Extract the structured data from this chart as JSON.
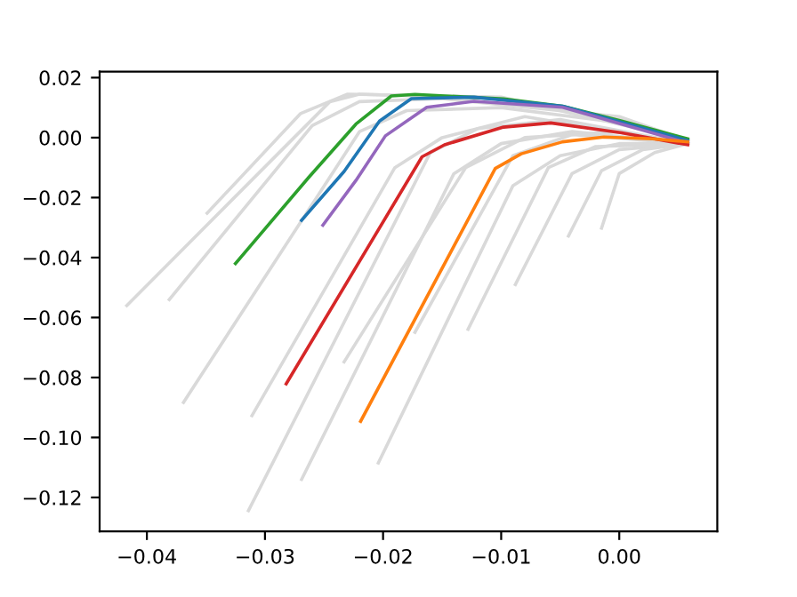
{
  "chart_data": {
    "type": "line",
    "xlim": [
      -0.044,
      0.0083
    ],
    "ylim": [
      -0.1313,
      0.022
    ],
    "xticks": [
      {
        "value": -0.04,
        "label": "−0.04"
      },
      {
        "value": -0.03,
        "label": "−0.03"
      },
      {
        "value": -0.02,
        "label": "−0.02"
      },
      {
        "value": -0.01,
        "label": "−0.01"
      },
      {
        "value": 0,
        "label": "0.00"
      }
    ],
    "yticks": [
      {
        "value": 0.02,
        "label": "0.02"
      },
      {
        "value": 0,
        "label": "0.00"
      },
      {
        "value": -0.02,
        "label": "−0.02"
      },
      {
        "value": -0.04,
        "label": "−0.04"
      },
      {
        "value": -0.06,
        "label": "−0.06"
      },
      {
        "value": -0.08,
        "label": "−0.08"
      },
      {
        "value": -0.1,
        "label": "−0.10"
      },
      {
        "value": -0.12,
        "label": "−0.12"
      }
    ],
    "grid": false,
    "marker": "none",
    "line_style": "solid",
    "series": [
      {
        "color": "#d9d9d9",
        "x": [
          -0.0417,
          -0.0245,
          -0.022,
          -0.01,
          0,
          0.0058
        ],
        "values": [
          -0.056,
          0.012,
          0.0145,
          0.013,
          0.006,
          -0.001
        ]
      },
      {
        "color": "#d9d9d9",
        "x": [
          -0.0369,
          -0.022,
          -0.018,
          -0.01,
          0,
          0.0058
        ],
        "values": [
          -0.0883,
          0.002,
          0.009,
          0.01,
          0.005,
          -0.0015
        ]
      },
      {
        "color": "#d9d9d9",
        "x": [
          -0.0314,
          -0.016,
          -0.012,
          -0.005,
          0.0058
        ],
        "values": [
          -0.1244,
          -0.005,
          0.003,
          0.006,
          -0.002
        ]
      },
      {
        "color": "#d9d9d9",
        "x": [
          -0.0269,
          -0.014,
          -0.01,
          -0.004,
          0.0058
        ],
        "values": [
          -0.114,
          -0.012,
          -0.002,
          0.002,
          -0.002
        ]
      },
      {
        "color": "#d9d9d9",
        "x": [
          -0.0204,
          -0.009,
          -0.005,
          0,
          0.0058
        ],
        "values": [
          -0.1085,
          -0.016,
          -0.006,
          -0.002,
          -0.002
        ]
      },
      {
        "color": "#d9d9d9",
        "x": [
          -0.0088,
          -0.004,
          0,
          0.0058
        ],
        "values": [
          -0.049,
          -0.012,
          -0.004,
          -0.002
        ]
      },
      {
        "color": "#d9d9d9",
        "x": [
          -0.0043,
          -0.0015,
          0.002,
          0.0058
        ],
        "values": [
          -0.0328,
          -0.011,
          -0.004,
          -0.002
        ]
      },
      {
        "color": "#d9d9d9",
        "x": [
          -0.0128,
          -0.006,
          -0.002,
          0.0058
        ],
        "values": [
          -0.0639,
          -0.01,
          -0.003,
          -0.002
        ]
      },
      {
        "color": "#d9d9d9",
        "x": [
          -0.0381,
          -0.026,
          -0.022,
          -0.015,
          0,
          0.0058
        ],
        "values": [
          -0.054,
          0.004,
          0.012,
          0.013,
          0.007,
          -0.001
        ]
      },
      {
        "color": "#d9d9d9",
        "x": [
          -0.0349,
          -0.027,
          -0.023,
          -0.01,
          0.0058
        ],
        "values": [
          -0.0252,
          0.008,
          0.0145,
          0.0135,
          -0.0008
        ]
      },
      {
        "color": "#d9d9d9",
        "x": [
          -0.0311,
          -0.019,
          -0.015,
          -0.008,
          0.0058
        ],
        "values": [
          -0.0927,
          -0.01,
          0.0,
          0.007,
          -0.002
        ]
      },
      {
        "color": "#d9d9d9",
        "x": [
          -0.0233,
          -0.013,
          -0.008,
          0,
          0.0058
        ],
        "values": [
          -0.0748,
          -0.01,
          0.0,
          0.002,
          -0.002
        ]
      },
      {
        "color": "#d9d9d9",
        "x": [
          -0.0173,
          -0.009,
          -0.004,
          0.0058
        ],
        "values": [
          -0.0649,
          -0.006,
          0.001,
          -0.002
        ]
      },
      {
        "color": "#d9d9d9",
        "x": [
          -0.0015,
          0.0,
          0.003,
          0.0058
        ],
        "values": [
          -0.0302,
          -0.012,
          -0.005,
          -0.002
        ]
      },
      {
        "color": "#2ca02c",
        "x": [
          -0.0325,
          -0.0263,
          -0.0223,
          -0.0193,
          -0.0173,
          -0.0098,
          -0.0048,
          0.0002,
          0.0058
        ],
        "values": [
          -0.042,
          -0.0133,
          0.0045,
          0.0139,
          0.0144,
          0.0129,
          0.0105,
          0.0055,
          -0.0004
        ]
      },
      {
        "color": "#1f77b4",
        "x": [
          -0.0269,
          -0.0233,
          -0.0203,
          -0.0176,
          -0.0123,
          -0.0048,
          0.0058
        ],
        "values": [
          -0.0276,
          -0.0113,
          0.0055,
          0.013,
          0.0135,
          0.0105,
          -0.001
        ]
      },
      {
        "color": "#9467bd",
        "x": [
          -0.0251,
          -0.0223,
          -0.0198,
          -0.0163,
          -0.0123,
          -0.0048,
          0.0058
        ],
        "values": [
          -0.0292,
          -0.0143,
          0.0006,
          0.0101,
          0.0121,
          0.0101,
          -0.0018
        ]
      },
      {
        "color": "#d62728",
        "x": [
          -0.0282,
          -0.0167,
          -0.0148,
          -0.0098,
          -0.0058,
          0.0002,
          0.0058
        ],
        "values": [
          -0.0821,
          -0.0064,
          -0.0024,
          0.0035,
          0.0049,
          0.0016,
          -0.0024
        ]
      },
      {
        "color": "#ff7f0e",
        "x": [
          -0.0219,
          -0.0105,
          -0.0083,
          -0.0048,
          -0.0013,
          0.0028,
          0.0058
        ],
        "values": [
          -0.0946,
          -0.0103,
          -0.0054,
          -0.0014,
          0.0002,
          -0.0004,
          -0.0014
        ]
      }
    ]
  }
}
